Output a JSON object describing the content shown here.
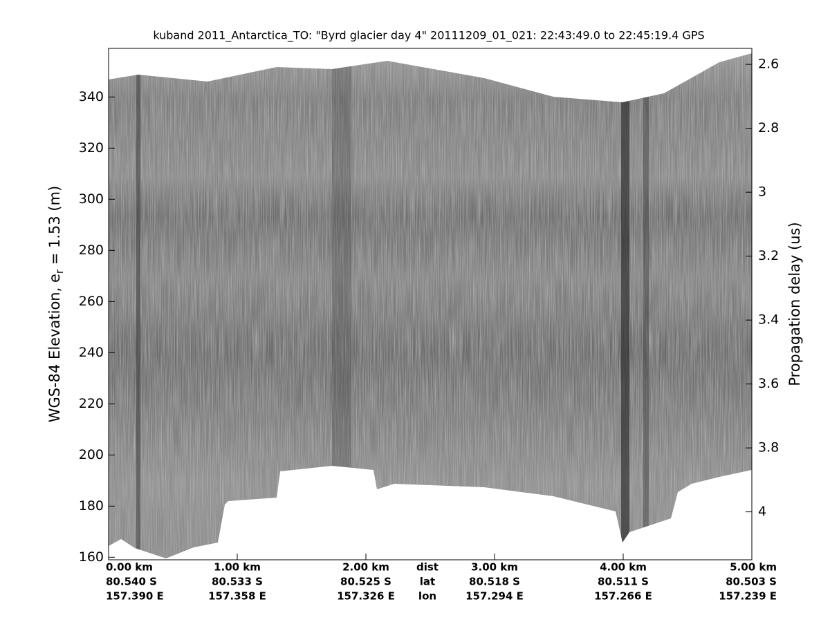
{
  "chart_data": {
    "type": "echogram",
    "title": "kuband 2011_Antarctica_TO: \"Byrd glacier day 4\"  20111209_01_021: 22:43:49.0 to 22:45:19.4 GPS",
    "ylabel_parts": [
      "WGS-84 Elevation, e",
      "r",
      " = 1.53 (m)"
    ],
    "y2label": "Propagation delay (us)",
    "xlim": [
      0,
      5
    ],
    "xticks": [
      {
        "value": 0,
        "label": "0.00 km"
      },
      {
        "value": 1,
        "label": "1.00 km"
      },
      {
        "value": 2,
        "label": "2.00 km"
      },
      {
        "value": 3,
        "label": "3.00 km"
      },
      {
        "value": 4,
        "label": "4.00 km"
      },
      {
        "value": 5,
        "label": "5.00 km"
      }
    ],
    "lat_labels": [
      "80.540 S",
      "80.533 S",
      "80.525 S",
      "80.518 S",
      "80.511 S",
      "80.503 S"
    ],
    "lon_labels": [
      "157.390 E",
      "157.358 E",
      "157.326 E",
      "157.294 E",
      "157.266 E",
      "157.239 E"
    ],
    "row_names": [
      "dist",
      "lat",
      "lon"
    ],
    "ylim": [
      159,
      359
    ],
    "yticks": [
      160,
      180,
      200,
      220,
      240,
      260,
      280,
      300,
      320,
      340
    ],
    "y2lim": [
      2.55,
      4.15
    ],
    "y2ticks": [
      2.6,
      2.8,
      3,
      3.2,
      3.4,
      3.6,
      3.8,
      4
    ]
  }
}
